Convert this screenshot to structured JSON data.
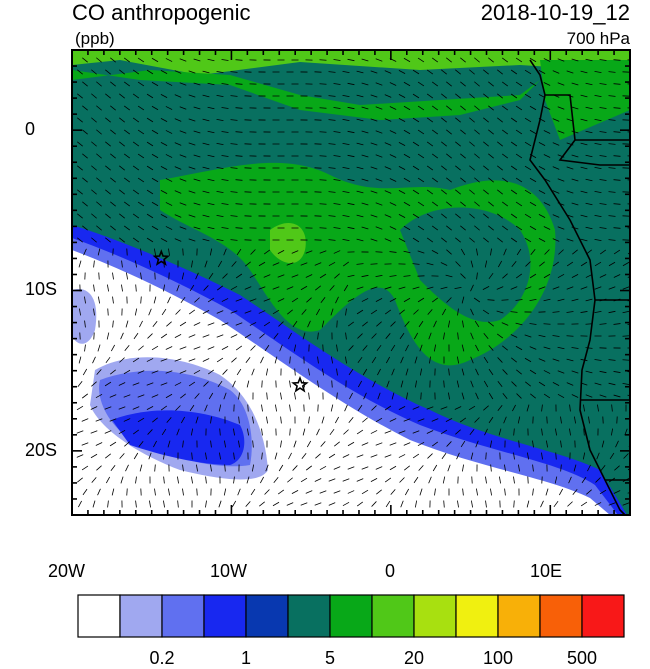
{
  "title_left": "CO anthropogenic",
  "title_right": "2018-10-19_12",
  "units": "(ppb)",
  "level": "700 hPa",
  "lat_labels": [
    "0",
    "10S",
    "20S"
  ],
  "lon_labels": [
    "20W",
    "10W",
    "0",
    "10E"
  ],
  "colorbar": {
    "colors": [
      "#ffffff",
      "#a0a8f0",
      "#6070f0",
      "#1828f0",
      "#0838b0",
      "#087060",
      "#08a818",
      "#50c818",
      "#a8e010",
      "#f0f010",
      "#f8b008",
      "#f86008",
      "#f81818"
    ],
    "labels": [
      "0.2",
      "1",
      "5",
      "20",
      "100",
      "500"
    ]
  },
  "markers": [
    {
      "name": "star-1",
      "lon": -14.4,
      "lat": -8.0
    },
    {
      "name": "star-2",
      "lon": -5.7,
      "lat": -15.9
    }
  ],
  "chart_data": {
    "type": "heatmap",
    "title": "CO anthropogenic",
    "units": "(ppb)",
    "valid_time": "2018-10-19_12",
    "level": "700 hPa",
    "x_ticks": [
      "20W",
      "10W",
      "0",
      "10E"
    ],
    "y_ticks": [
      "0",
      "10S",
      "20S"
    ],
    "xlim": [
      -20,
      15
    ],
    "ylim": [
      -24,
      5
    ],
    "colorbar_labels": [
      "0.2",
      "1",
      "5",
      "20",
      "100",
      "500"
    ]
  }
}
